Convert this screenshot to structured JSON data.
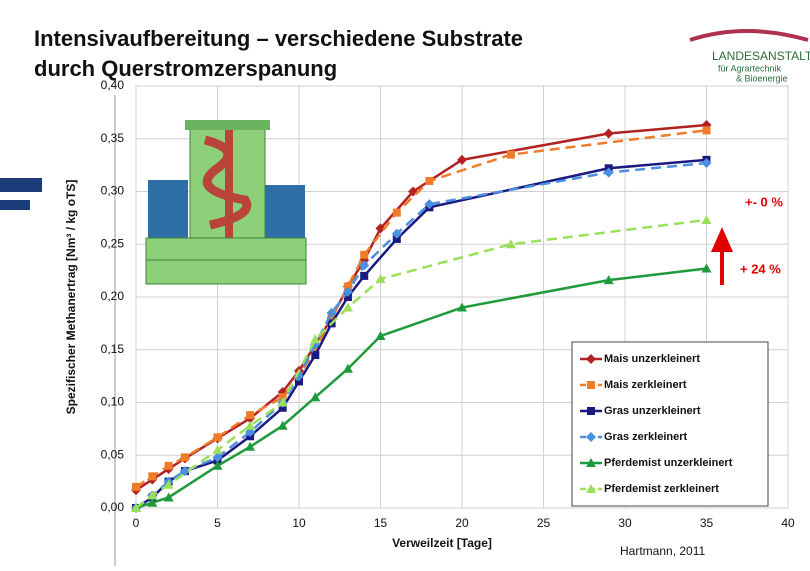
{
  "chart_data": {
    "type": "line",
    "title": "Intensivaufbereitung – verschiedene Substrate",
    "subtitle": "durch Querstromzerspanung",
    "logo": {
      "name": "LANDESANSTALT",
      "line1": "für Agrartechnik",
      "line2": "& Bioenergie"
    },
    "x_label": "Verweilzeit  [Tage]",
    "y_label": "Spezifischer  Methanertrag  [Nm³ / kg oTS]",
    "source": "Hartmann, 2011",
    "annotations": [
      "+- 0 %",
      "+ 24 %"
    ],
    "xlim": [
      0,
      40
    ],
    "xticks": [
      0,
      5,
      10,
      15,
      20,
      25,
      30,
      35,
      40
    ],
    "ylim": [
      0,
      0.4
    ],
    "yticks": [
      {
        "value": 0,
        "label": "0,00"
      },
      {
        "value": 0.05,
        "label": "0,05"
      },
      {
        "value": 0.1,
        "label": "0,10"
      },
      {
        "value": 0.15,
        "label": "0,15"
      },
      {
        "value": 0.2,
        "label": "0,20"
      },
      {
        "value": 0.25,
        "label": "0,25"
      },
      {
        "value": 0.3,
        "label": "0,30"
      },
      {
        "value": 0.35,
        "label": "0,35"
      },
      {
        "value": {
          "v": 0.4
        },
        "label": "0,40"
      }
    ],
    "grid": true,
    "legend": "lower right",
    "series": [
      {
        "name": "Mais unzerkleinert",
        "color": "#b22222",
        "marker": "diamond",
        "dashed": false,
        "x": [
          0,
          1,
          2,
          3,
          5,
          7,
          9,
          10,
          11,
          12,
          13,
          14,
          15,
          17,
          20,
          29,
          35
        ],
        "values": [
          0.017,
          0.027,
          0.037,
          0.047,
          0.066,
          0.085,
          0.11,
          0.13,
          0.155,
          0.18,
          0.21,
          0.235,
          0.265,
          0.3,
          0.33,
          0.355,
          0.363
        ]
      },
      {
        "name": "Mais zerkleinert",
        "color": "#f07c2a",
        "marker": "square",
        "dashed": true,
        "x": [
          0,
          1,
          2,
          3,
          5,
          7,
          9,
          10,
          11,
          12,
          13,
          14,
          16,
          18,
          23,
          35
        ],
        "values": [
          0.02,
          0.03,
          0.04,
          0.048,
          0.067,
          0.088,
          0.105,
          0.125,
          0.15,
          0.18,
          0.21,
          0.24,
          0.28,
          0.31,
          0.335,
          0.358
        ]
      },
      {
        "name": "Gras unzerkleinert",
        "color": "#1a1a80",
        "marker": "square",
        "dashed": false,
        "x": [
          0,
          1,
          2,
          3,
          5,
          7,
          9,
          10,
          11,
          12,
          13,
          14,
          16,
          18,
          29,
          35
        ],
        "values": [
          0,
          0.01,
          0.025,
          0.035,
          0.045,
          0.068,
          0.095,
          0.12,
          0.145,
          0.175,
          0.2,
          0.22,
          0.255,
          0.285,
          0.322,
          0.33
        ]
      },
      {
        "name": "Gras zerkleinert",
        "color": "#4a8fe0",
        "marker": "diamond",
        "dashed": true,
        "x": [
          0,
          1,
          2,
          3,
          5,
          7,
          9,
          10,
          11,
          12,
          13,
          14,
          16,
          18,
          29,
          35
        ],
        "values": [
          0,
          0.012,
          0.025,
          0.035,
          0.048,
          0.072,
          0.1,
          0.125,
          0.155,
          0.185,
          0.205,
          0.23,
          0.26,
          0.288,
          0.318,
          0.327
        ]
      },
      {
        "name": "Pferdemist unzerkleinert",
        "color": "#1e9a3a",
        "marker": "triangle",
        "dashed": false,
        "x": [
          0,
          1,
          2,
          5,
          7,
          9,
          11,
          13,
          15,
          20,
          29,
          35
        ],
        "values": [
          0,
          0.005,
          0.01,
          0.04,
          0.058,
          0.078,
          0.105,
          0.132,
          0.163,
          0.19,
          0.216,
          0.227
        ]
      },
      {
        "name": "Pferdemist zerkleinert",
        "color": "#9be05a",
        "marker": "triangle",
        "dashed": true,
        "x": [
          0,
          1,
          2,
          5,
          7,
          9,
          11,
          13,
          15,
          23,
          35
        ],
        "values": [
          0,
          0.012,
          0.022,
          0.055,
          0.078,
          0.1,
          0.16,
          0.19,
          0.217,
          0.25,
          0.273
        ]
      }
    ]
  }
}
